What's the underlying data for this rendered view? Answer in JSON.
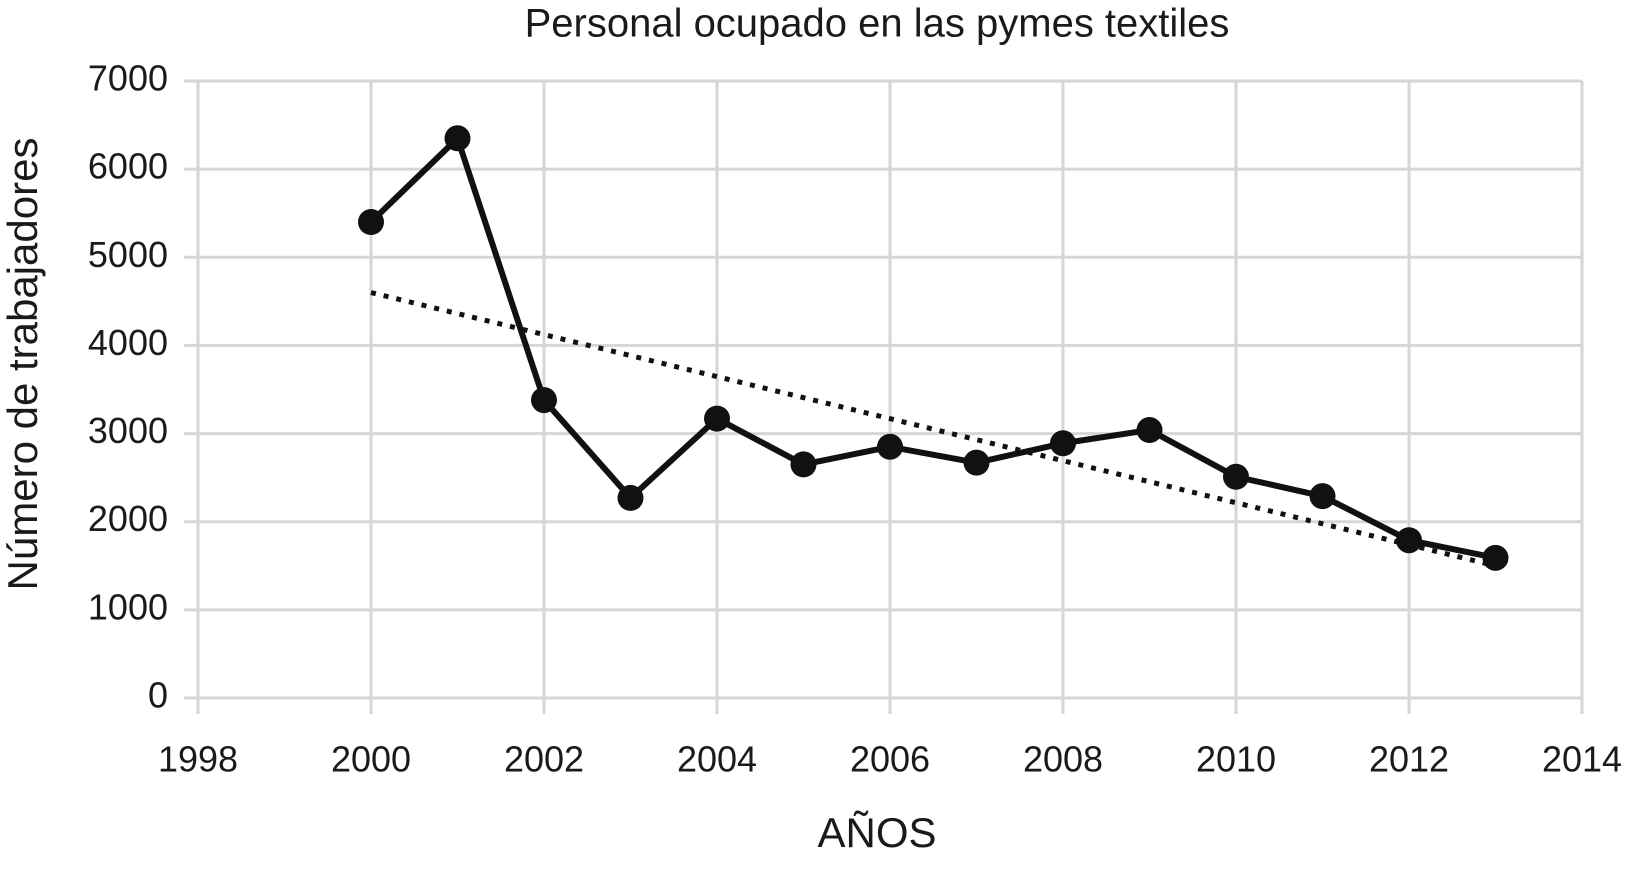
{
  "chart_data": {
    "type": "line",
    "title": "Personal ocupado en las pymes textiles",
    "xlabel": "AÑOS",
    "ylabel": "Número de trabajadores",
    "x": [
      2000,
      2001,
      2002,
      2003,
      2004,
      2005,
      2006,
      2007,
      2008,
      2009,
      2010,
      2011,
      2012,
      2013
    ],
    "series": [
      {
        "color": "#111111",
        "marker": "circle",
        "linestyle": "solid",
        "values": [
          5400,
          6350,
          3380,
          2270,
          3170,
          2650,
          2850,
          2670,
          2890,
          3040,
          2510,
          2290,
          1790,
          1590
        ]
      },
      {
        "color": "#111111",
        "linestyle": "dotted",
        "x": [
          2000,
          2013
        ],
        "values": [
          4600,
          1500
        ]
      }
    ],
    "xlim": [
      1998,
      2014
    ],
    "xticks": [
      1998,
      2000,
      2002,
      2004,
      2006,
      2008,
      2010,
      2012,
      2014
    ],
    "ylim": [
      0,
      7000
    ],
    "yticks": [
      0,
      1000,
      2000,
      3000,
      4000,
      5000,
      6000,
      7000
    ],
    "grid": true
  }
}
